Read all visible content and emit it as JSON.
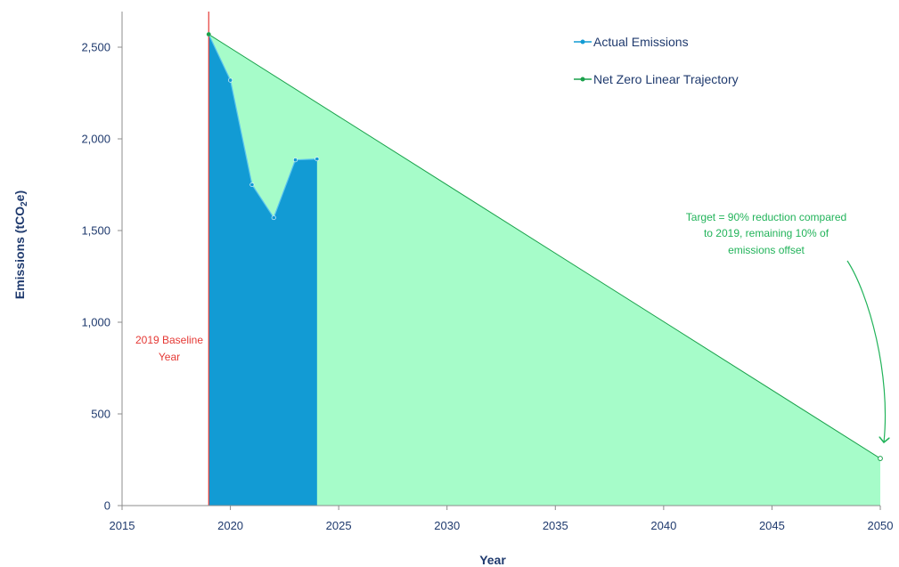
{
  "chart_data": {
    "type": "area",
    "xlabel": "Year",
    "ylabel_main": "Emissions (tCO",
    "ylabel_sub": "2",
    "ylabel_end": "e)",
    "xlim": [
      2015,
      2050
    ],
    "ylim": [
      0,
      2500
    ],
    "xticks": [
      2015,
      2020,
      2025,
      2030,
      2035,
      2040,
      2045,
      2050
    ],
    "xtick_labels": [
      "2015",
      "2020",
      "2025",
      "2030",
      "2035",
      "2040",
      "2045",
      "2050"
    ],
    "yticks": [
      0,
      500,
      1000,
      1500,
      2000,
      2500
    ],
    "ytick_labels": [
      "0",
      "500",
      "1,000",
      "1,500",
      "2,000",
      "2,500"
    ],
    "grid": false,
    "legend_position": "top-right",
    "series": [
      {
        "name": "Actual Emissions",
        "color": "#129bd4",
        "fill": "#129bd4",
        "x": [
          2019,
          2020,
          2021,
          2022,
          2023,
          2024
        ],
        "y": [
          2570,
          2320,
          1750,
          1570,
          1885,
          1890
        ]
      },
      {
        "name": "Net Zero Linear Trajectory",
        "color": "#1aa14b",
        "fill": "#a6fcc9",
        "x": [
          2019,
          2050
        ],
        "y": [
          2570,
          257
        ]
      }
    ],
    "annotations": {
      "baseline": {
        "x": 2019,
        "color": "#e53935",
        "line1": "2019 Baseline",
        "line2": "Year"
      },
      "target": {
        "color": "#22b35a",
        "line1": "Target = 90% reduction compared",
        "line2": "to 2019, remaining 10% of",
        "line3": "emissions offset"
      }
    }
  }
}
